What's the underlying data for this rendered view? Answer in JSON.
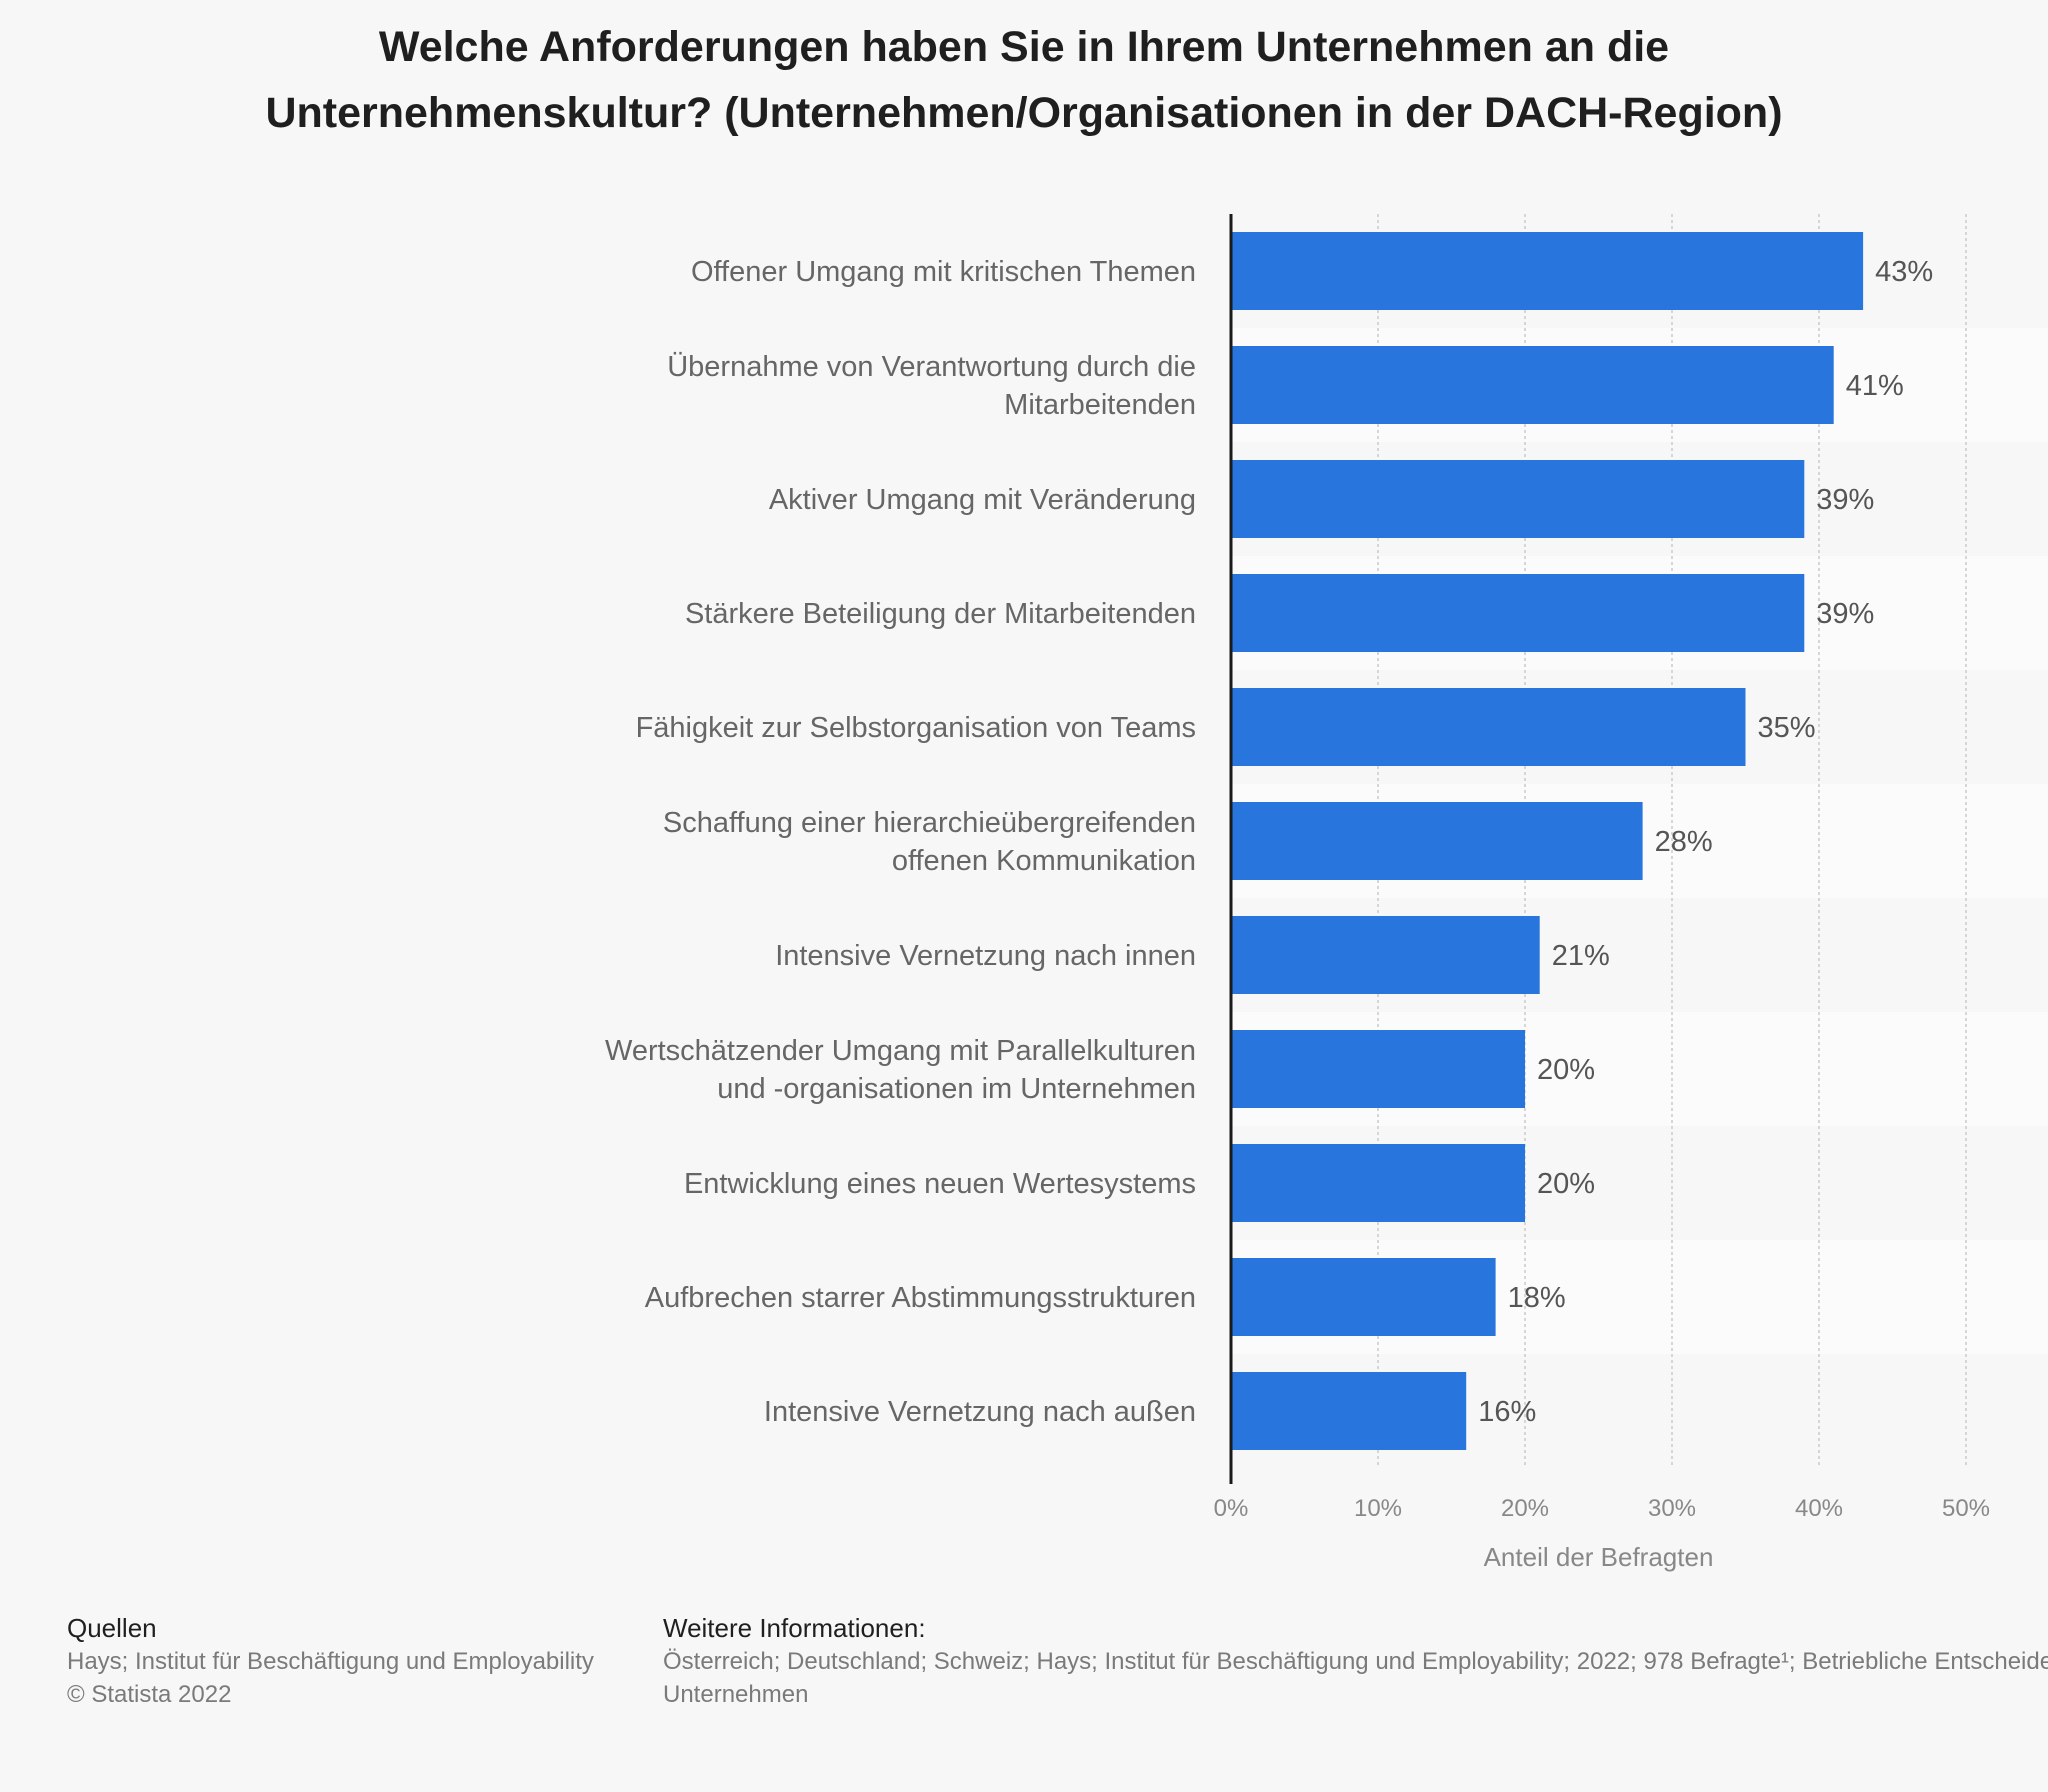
{
  "title_lines": [
    "Welche Anforderungen haben Sie in Ihrem Unternehmen an die",
    "Unternehmenskultur? (Unternehmen/Organisationen in der DACH-Region)"
  ],
  "colors": {
    "bar": "#2876dd",
    "axis": "#1a1a1a",
    "grid": "#d6d6d6",
    "label": "#666666",
    "value": "#555555",
    "tick": "#888888",
    "band": "#fbfbfb"
  },
  "chart_data": {
    "type": "bar",
    "orientation": "horizontal",
    "title": "Welche Anforderungen haben Sie in Ihrem Unternehmen an die Unternehmenskultur? (Unternehmen/Organisationen in der DACH-Region)",
    "xlabel": "Anteil der Befragten",
    "ylabel": "",
    "xlim": [
      0,
      50
    ],
    "ticks": [
      "0%",
      "10%",
      "20%",
      "30%",
      "40%",
      "50%"
    ],
    "tick_values": [
      0,
      10,
      20,
      30,
      40,
      50
    ],
    "categories": [
      [
        "Offener Umgang mit kritischen Themen"
      ],
      [
        "Übernahme von Verantwortung durch die",
        "Mitarbeitenden"
      ],
      [
        "Aktiver Umgang mit Veränderung"
      ],
      [
        "Stärkere Beteiligung der Mitarbeitenden"
      ],
      [
        "Fähigkeit zur Selbstorganisation von Teams"
      ],
      [
        "Schaffung einer hierarchieübergreifenden",
        "offenen Kommunikation"
      ],
      [
        "Intensive Vernetzung nach innen"
      ],
      [
        "Wertschätzender Umgang mit Parallelkulturen",
        "und -organisationen im Unternehmen"
      ],
      [
        "Entwicklung eines neuen Wertesystems"
      ],
      [
        "Aufbrechen starrer Abstimmungsstrukturen"
      ],
      [
        "Intensive Vernetzung nach außen"
      ]
    ],
    "values": [
      43,
      41,
      39,
      39,
      35,
      28,
      21,
      20,
      20,
      18,
      16
    ],
    "value_labels": [
      "43%",
      "41%",
      "39%",
      "39%",
      "35%",
      "28%",
      "21%",
      "20%",
      "20%",
      "18%",
      "16%"
    ],
    "grid": true,
    "legend": "none"
  },
  "footer": {
    "sources_heading": "Quellen",
    "sources_lines": [
      "Hays; Institut für Beschäftigung und Employability",
      "© Statista 2022"
    ],
    "info_heading": "Weitere Informationen:",
    "info_lines": [
      "Österreich; Deutschland; Schweiz; Hays; Institut für Beschäftigung und Employability; 2022; 978 Befragte¹; Betriebliche Entscheider in",
      "Unternehmen"
    ]
  }
}
